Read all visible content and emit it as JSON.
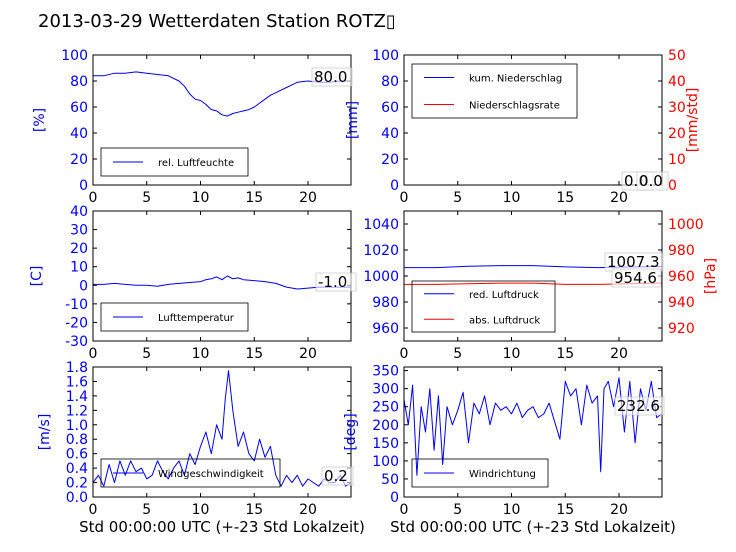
{
  "title": "2013-03-29 Wetterdaten Station ROTZ▯",
  "colors": {
    "blue": "#0000ff",
    "red": "#ff0000",
    "black": "#000000"
  },
  "xlabel": "Std 00:00:00 UTC (+-23 Std Lokalzeit)",
  "chart_data": [
    {
      "id": "humidity",
      "type": "line",
      "xlim": [
        0,
        24
      ],
      "xticks": [
        0,
        5,
        10,
        15,
        20
      ],
      "ylim": [
        0,
        100
      ],
      "yticks": [
        0,
        20,
        40,
        60,
        80,
        100
      ],
      "ylabel": "[%]",
      "annotations": [
        "80.0"
      ],
      "series": [
        {
          "name": "rel. Luftfeuchte",
          "color": "#0000ff",
          "x": [
            0,
            1,
            2,
            3,
            4,
            5,
            6,
            7,
            8,
            8.5,
            9,
            9.5,
            10,
            10.5,
            11,
            11.5,
            12,
            12.5,
            13,
            13.5,
            14,
            14.5,
            15,
            15.5,
            16,
            16.5,
            17,
            17.5,
            18,
            18.5,
            19,
            20,
            21,
            22,
            23,
            24
          ],
          "y": [
            84,
            84,
            86,
            86,
            87,
            86,
            85,
            84,
            80,
            76,
            70,
            66,
            65,
            62,
            58,
            57,
            54,
            53,
            55,
            56,
            57,
            58,
            60,
            63,
            66,
            69,
            71,
            73,
            75,
            77,
            79,
            80,
            79,
            79,
            80,
            80
          ]
        }
      ]
    },
    {
      "id": "precip",
      "type": "line",
      "xlim": [
        0,
        24
      ],
      "xticks": [
        0,
        5,
        10,
        15,
        20
      ],
      "ylim": [
        0,
        100
      ],
      "yticks": [
        0,
        20,
        40,
        60,
        80,
        100
      ],
      "ylabel": "[mm]",
      "y2lim": [
        0,
        50
      ],
      "y2ticks": [
        0,
        10,
        20,
        30,
        40,
        50
      ],
      "y2label": "[mm/std]",
      "annotations": [
        "0.0",
        "0.0"
      ],
      "series": [
        {
          "name": "kum. Niederschlag",
          "color": "#0000ff",
          "x": [
            0,
            24
          ],
          "y": [
            0,
            0
          ]
        },
        {
          "name": "Niederschlagsrate",
          "color": "#ff0000",
          "axis": "right",
          "x": [
            0,
            24
          ],
          "y": [
            0,
            0
          ]
        }
      ]
    },
    {
      "id": "temperature",
      "type": "line",
      "xlim": [
        0,
        24
      ],
      "xticks": [
        0,
        5,
        10,
        15,
        20
      ],
      "ylim": [
        -30,
        40
      ],
      "yticks": [
        -30,
        -20,
        -10,
        0,
        10,
        20,
        30,
        40
      ],
      "ylabel": "[C]",
      "annotations": [
        "-1.0"
      ],
      "series": [
        {
          "name": "Lufttemperatur",
          "color": "#0000ff",
          "x": [
            0,
            1,
            2,
            3,
            4,
            5,
            6,
            7,
            8,
            9,
            10,
            10.5,
            11,
            11.5,
            12,
            12.5,
            13,
            13.5,
            14,
            15,
            16,
            17,
            18,
            19,
            20,
            21,
            22,
            23,
            24
          ],
          "y": [
            0.5,
            0.5,
            1,
            0.5,
            0,
            0,
            -0.5,
            0.5,
            1,
            1.5,
            2,
            3,
            3.5,
            4.5,
            3,
            5,
            3.5,
            4,
            3,
            2.5,
            2,
            1,
            -1,
            -2,
            -1.5,
            -1,
            -1,
            -1,
            -1
          ]
        }
      ]
    },
    {
      "id": "pressure",
      "type": "line",
      "xlim": [
        0,
        24
      ],
      "xticks": [
        0,
        5,
        10,
        15,
        20
      ],
      "ylim": [
        950,
        1050
      ],
      "yticks": [
        960,
        980,
        1000,
        1020,
        1040
      ],
      "ylabel": "",
      "y2lim": [
        910,
        1010
      ],
      "y2ticks": [
        920,
        940,
        960,
        980,
        1000
      ],
      "y2label": "[hPa]",
      "annotations": [
        "1007.3",
        "954.6"
      ],
      "series": [
        {
          "name": "red. Luftdruck",
          "color": "#0000ff",
          "x": [
            0,
            3,
            6,
            9,
            12,
            15,
            18,
            21,
            24
          ],
          "y": [
            1006.5,
            1006.5,
            1007.5,
            1008,
            1008,
            1007,
            1006.5,
            1007,
            1007.3
          ]
        },
        {
          "name": "abs. Luftdruck",
          "color": "#ff0000",
          "axis": "right",
          "x": [
            0,
            3,
            6,
            9,
            12,
            15,
            18,
            21,
            24
          ],
          "y": [
            953.5,
            953.5,
            954,
            954.5,
            954.5,
            953.5,
            953.5,
            954,
            954.6
          ]
        }
      ]
    },
    {
      "id": "wind",
      "type": "line",
      "xlim": [
        0,
        24
      ],
      "xticks": [
        0,
        5,
        10,
        15,
        20
      ],
      "ylim": [
        0,
        1.8
      ],
      "yticks": [
        0.0,
        0.2,
        0.4,
        0.6,
        0.8,
        1.0,
        1.2,
        1.4,
        1.6,
        1.8
      ],
      "ylabel": "[m/s]",
      "annotations": [
        "0.2"
      ],
      "series": [
        {
          "name": "Windgeschwindigkeit",
          "color": "#0000ff",
          "x": [
            0,
            0.5,
            1,
            1.5,
            2,
            2.5,
            3,
            3.5,
            4,
            4.5,
            5,
            5.5,
            6,
            6.5,
            7,
            7.5,
            8,
            8.5,
            9,
            9.5,
            10,
            10.5,
            11,
            11.5,
            12,
            12.3,
            12.6,
            13,
            13.5,
            14,
            14.5,
            15,
            15.5,
            16,
            16.5,
            17,
            17.5,
            18,
            18.5,
            19,
            19.5,
            20,
            20.5,
            21,
            21.5,
            22,
            22.5,
            23,
            23.5,
            24
          ],
          "y": [
            0.2,
            0.3,
            0.15,
            0.45,
            0.2,
            0.5,
            0.3,
            0.5,
            0.35,
            0.4,
            0.25,
            0.3,
            0.5,
            0.35,
            0.25,
            0.4,
            0.5,
            0.3,
            0.6,
            0.45,
            0.7,
            0.9,
            0.6,
            1.0,
            0.8,
            1.35,
            1.75,
            1.2,
            0.7,
            0.9,
            0.6,
            0.5,
            0.8,
            0.55,
            0.7,
            0.3,
            0.15,
            0.3,
            0.2,
            0.3,
            0.15,
            0.25,
            0.2,
            0.15,
            0.25,
            0.2,
            0.2,
            0.3,
            0.15,
            0.2
          ]
        }
      ]
    },
    {
      "id": "winddir",
      "type": "line",
      "xlim": [
        0,
        24
      ],
      "xticks": [
        0,
        5,
        10,
        15,
        20
      ],
      "ylim": [
        0,
        360
      ],
      "yticks": [
        0,
        50,
        100,
        150,
        200,
        250,
        300,
        350
      ],
      "ylabel": "[deg]",
      "annotations": [
        "232.6"
      ],
      "series": [
        {
          "name": "Windrichtung",
          "color": "#0000ff",
          "x": [
            0,
            0.4,
            0.8,
            1.2,
            1.6,
            2,
            2.4,
            2.8,
            3.2,
            3.6,
            4,
            4.5,
            5,
            5.5,
            6,
            6.5,
            7,
            7.5,
            8,
            8.5,
            9,
            9.5,
            10,
            10.5,
            11,
            11.5,
            12,
            12.5,
            13,
            13.5,
            14,
            14.5,
            15,
            15.5,
            16,
            16.5,
            17,
            17.5,
            18,
            18.3,
            18.6,
            19,
            19.5,
            20,
            20.5,
            21,
            21.5,
            22,
            22.5,
            23,
            23.5,
            24
          ],
          "y": [
            270,
            200,
            310,
            60,
            250,
            180,
            300,
            130,
            280,
            90,
            250,
            200,
            240,
            290,
            150,
            260,
            230,
            280,
            200,
            260,
            240,
            250,
            230,
            260,
            220,
            240,
            250,
            220,
            230,
            260,
            210,
            160,
            320,
            280,
            300,
            200,
            310,
            260,
            280,
            70,
            300,
            320,
            250,
            330,
            180,
            320,
            150,
            300,
            240,
            320,
            220,
            230
          ]
        }
      ]
    }
  ]
}
